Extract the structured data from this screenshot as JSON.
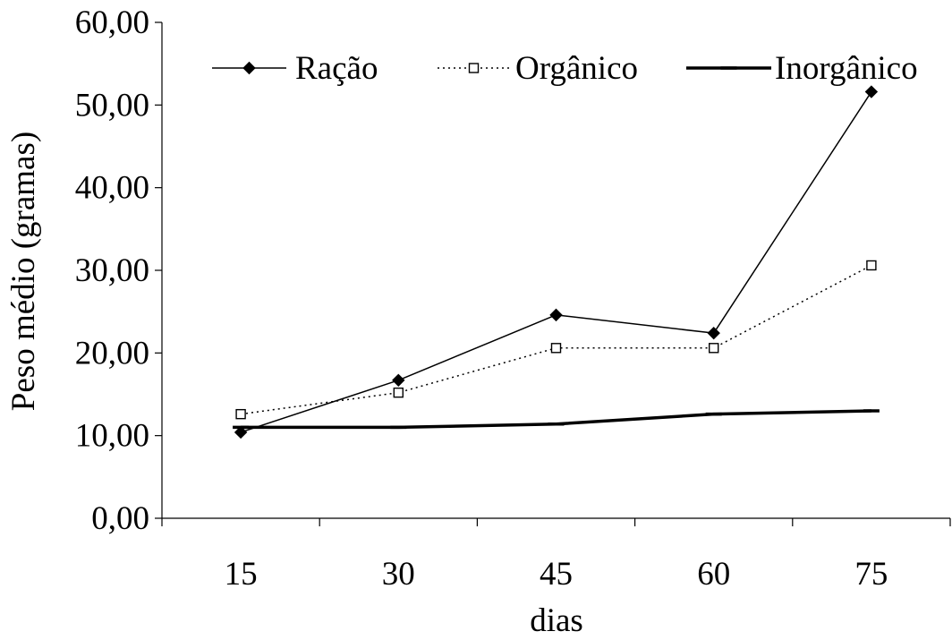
{
  "chart_data": {
    "type": "line",
    "title": "",
    "xlabel": "dias",
    "ylabel": "Peso médio (gramas)",
    "categories": [
      "15",
      "30",
      "45",
      "60",
      "75"
    ],
    "ylim": [
      0,
      60
    ],
    "y_ticks": [
      "0,00",
      "10,00",
      "20,00",
      "30,00",
      "40,00",
      "50,00",
      "60,00"
    ],
    "grid": false,
    "legend_position": "top",
    "series": [
      {
        "name": "Ração",
        "values": [
          10.4,
          16.7,
          24.6,
          22.4,
          51.6
        ],
        "color": "#000000",
        "line_style": "solid",
        "marker": "diamond"
      },
      {
        "name": "Orgânico",
        "values": [
          12.6,
          15.2,
          20.6,
          20.6,
          30.6
        ],
        "color": "#000000",
        "line_style": "dotted",
        "marker": "open-square"
      },
      {
        "name": "Inorgânico",
        "values": [
          11.0,
          11.0,
          11.4,
          12.6,
          13.0
        ],
        "color": "#000000",
        "line_style": "thick-solid",
        "marker": "dash"
      }
    ]
  }
}
